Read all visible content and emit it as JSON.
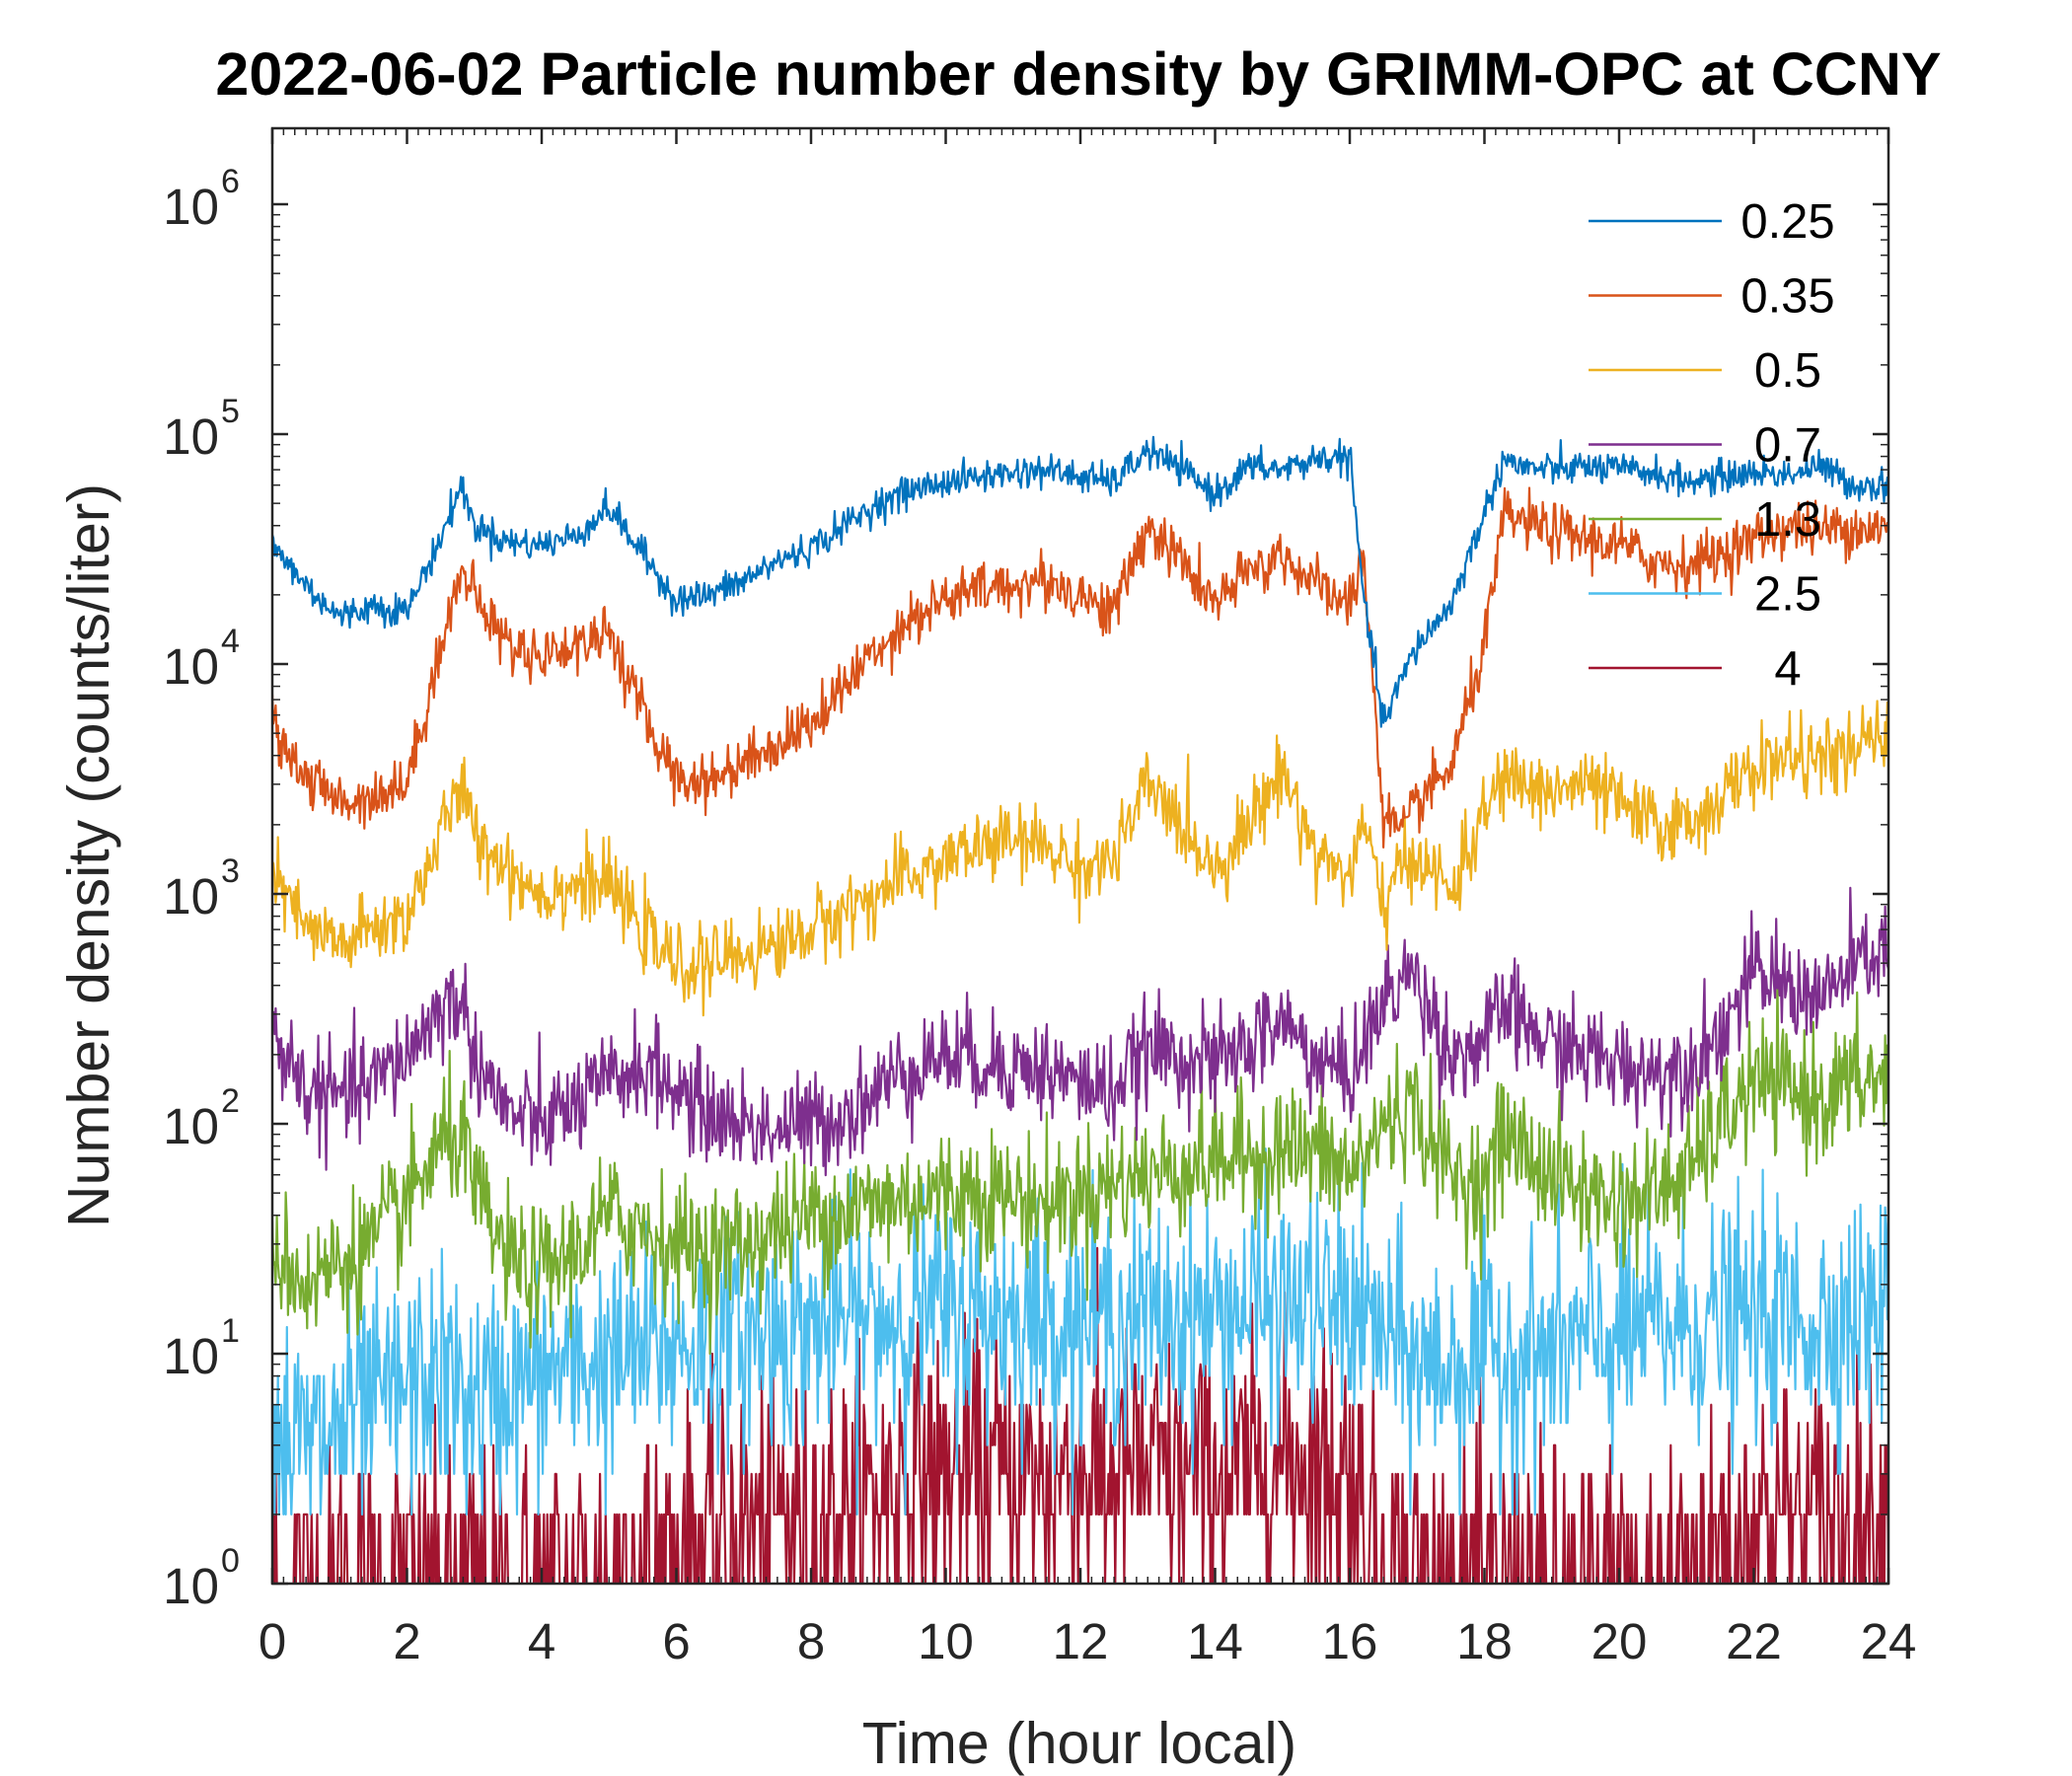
{
  "chart_data": {
    "type": "line",
    "title": "2022-06-02 Particle number density by GRIMM-OPC at CCNY",
    "xlabel": "Time (hour local)",
    "ylabel": "Number density (counts/liter)",
    "xlim": [
      0,
      24
    ],
    "ylim": [
      1,
      2000000
    ],
    "yscale": "log",
    "grid": false,
    "legend_position": "top-right",
    "x_ticks": [
      "0",
      "2",
      "4",
      "6",
      "8",
      "10",
      "12",
      "14",
      "16",
      "18",
      "20",
      "22",
      "24"
    ],
    "y_ticks": [
      {
        "base": "10",
        "exp": "0"
      },
      {
        "base": "10",
        "exp": "1"
      },
      {
        "base": "10",
        "exp": "2"
      },
      {
        "base": "10",
        "exp": "3"
      },
      {
        "base": "10",
        "exp": "4"
      },
      {
        "base": "10",
        "exp": "5"
      },
      {
        "base": "10",
        "exp": "6"
      }
    ],
    "x": [
      0,
      0.5,
      1,
      1.5,
      2,
      2.5,
      2.8,
      3,
      3.5,
      4,
      4.5,
      5,
      5.5,
      6,
      6.5,
      7,
      7.5,
      8,
      8.5,
      9,
      9.5,
      10,
      10.5,
      11,
      11.5,
      12,
      12.5,
      13,
      13.5,
      14,
      14.5,
      15,
      15.5,
      16,
      16.2,
      16.5,
      16.8,
      17,
      17.5,
      18,
      18.3,
      18.5,
      19,
      19.5,
      20,
      20.5,
      21,
      21.5,
      22,
      22.5,
      23,
      23.5,
      24
    ],
    "series": [
      {
        "name": "0.25",
        "color": "#0072BD",
        "noise": 0.035,
        "values": [
          33000,
          22000,
          16000,
          18000,
          17000,
          35000,
          60000,
          40000,
          34000,
          33000,
          36000,
          48000,
          30000,
          19000,
          20000,
          23000,
          28000,
          32000,
          40000,
          50000,
          57000,
          62000,
          65000,
          68000,
          70000,
          65000,
          62000,
          85000,
          70000,
          55000,
          72000,
          70000,
          78000,
          80000,
          20000,
          5500,
          9000,
          12000,
          18000,
          45000,
          80000,
          72000,
          70000,
          72000,
          70000,
          68000,
          62000,
          65000,
          68000,
          67000,
          72000,
          60000,
          60000
        ]
      },
      {
        "name": "0.35",
        "color": "#D95319",
        "noise": 0.06,
        "values": [
          5500,
          3200,
          2500,
          2700,
          3000,
          12000,
          25000,
          20000,
          12000,
          11000,
          12000,
          14000,
          6000,
          3200,
          3100,
          3800,
          4500,
          5500,
          8000,
          12000,
          16000,
          19000,
          21000,
          22000,
          23000,
          20000,
          17000,
          40000,
          28000,
          18000,
          25000,
          30000,
          22000,
          18000,
          30000,
          2200,
          1800,
          2500,
          3500,
          12000,
          45000,
          42000,
          38000,
          35000,
          33000,
          28000,
          27000,
          30000,
          35000,
          40000,
          38000,
          40000,
          38000
        ]
      },
      {
        "name": "0.5",
        "color": "#EDB120",
        "noise": 0.08,
        "values": [
          1200,
          700,
          600,
          700,
          800,
          1800,
          3000,
          1800,
          1300,
          1000,
          1100,
          1100,
          700,
          480,
          500,
          550,
          600,
          700,
          850,
          1000,
          1200,
          1400,
          1600,
          1700,
          1600,
          1300,
          1400,
          3000,
          2000,
          1300,
          2000,
          3500,
          1500,
          1200,
          2000,
          900,
          1300,
          1500,
          1000,
          2200,
          3300,
          3000,
          2800,
          3000,
          2500,
          2000,
          2000,
          2600,
          3500,
          4000,
          3800,
          4200,
          5000
        ]
      },
      {
        "name": "0.7",
        "color": "#7E2F8E",
        "noise": 0.11,
        "values": [
          250,
          140,
          130,
          150,
          200,
          320,
          350,
          200,
          110,
          100,
          120,
          150,
          180,
          140,
          110,
          100,
          95,
          100,
          110,
          140,
          180,
          200,
          190,
          180,
          170,
          150,
          140,
          210,
          200,
          180,
          220,
          280,
          190,
          160,
          220,
          330,
          450,
          420,
          200,
          220,
          330,
          280,
          220,
          200,
          180,
          170,
          180,
          250,
          450,
          400,
          350,
          480,
          600
        ]
      },
      {
        "name": "1.3",
        "color": "#77AC30",
        "noise": 0.14,
        "values": [
          30,
          20,
          25,
          30,
          45,
          80,
          90,
          50,
          25,
          22,
          28,
          40,
          35,
          30,
          28,
          30,
          35,
          40,
          42,
          45,
          48,
          50,
          52,
          48,
          45,
          50,
          55,
          60,
          65,
          70,
          72,
          80,
          75,
          60,
          70,
          100,
          120,
          110,
          60,
          55,
          90,
          80,
          60,
          50,
          45,
          50,
          60,
          100,
          150,
          140,
          130,
          150,
          160
        ]
      },
      {
        "name": "2.5",
        "color": "#4DBEEE",
        "noise": 0.25,
        "values": [
          5,
          4,
          5,
          6,
          7,
          8,
          7,
          6,
          7,
          8,
          9,
          9,
          10,
          11,
          12,
          12,
          13,
          13,
          14,
          14,
          15,
          15,
          15,
          15,
          14,
          14,
          14,
          14,
          15,
          15,
          16,
          16,
          16,
          16,
          14,
          12,
          10,
          9,
          9,
          10,
          10,
          10,
          10,
          11,
          12,
          13,
          13,
          14,
          14,
          14,
          14,
          15,
          15
        ]
      },
      {
        "name": "4",
        "color": "#A2142F",
        "noise": 0.3,
        "values": [
          1,
          1,
          1,
          1,
          1,
          1,
          1,
          1,
          1,
          1,
          1,
          1.2,
          1.3,
          1.4,
          1.5,
          1.7,
          2,
          2,
          2.2,
          2.5,
          3,
          3,
          3,
          3,
          3,
          3,
          3,
          3,
          3,
          3,
          3,
          3.5,
          3.5,
          3.2,
          2,
          1.5,
          1.2,
          1.2,
          1,
          1,
          1,
          1,
          1,
          1,
          1,
          1,
          1.2,
          1.5,
          2,
          2,
          2,
          2,
          2
        ]
      }
    ]
  }
}
